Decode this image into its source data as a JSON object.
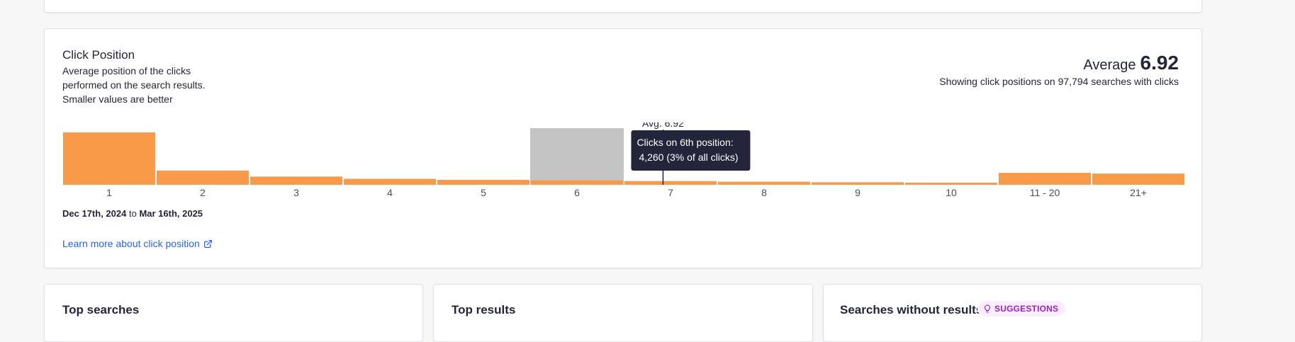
{
  "click_position": {
    "title": "Click Position",
    "description_lines": [
      "Average position of the clicks",
      "performed on the search results.",
      "Smaller values are better"
    ],
    "average_label": "Average",
    "average_value": "6.92",
    "subtitle": "Showing click positions on 97,794 searches with clicks",
    "date_from": "Dec 17th, 2024",
    "date_to_word": "to",
    "date_to": "Mar 16th, 2025",
    "learn_more": "Learn more about click position"
  },
  "chart_data": {
    "type": "bar",
    "categories": [
      "1",
      "2",
      "3",
      "4",
      "5",
      "6",
      "7",
      "8",
      "9",
      "10",
      "11 - 20",
      "21+"
    ],
    "values": [
      0.35,
      0.095,
      0.055,
      0.04,
      0.033,
      0.03,
      0.025,
      0.021,
      0.017,
      0.014,
      0.08,
      0.075
    ],
    "highlight_index": 5,
    "avg_marker": {
      "value": 6.92,
      "label": "Avg. 6.92"
    },
    "tooltip": {
      "line1": "Clicks on 6th position:",
      "line2": "4,260 (3% of all clicks)"
    },
    "colors": {
      "bar": "#f89a47",
      "highlight_bg": "#c4c4c4",
      "tooltip_bg": "#23263b",
      "marker": "#23263b"
    }
  },
  "top_searches": {
    "title": "Top searches"
  },
  "top_results": {
    "title": "Top results"
  },
  "searches_without_results": {
    "title": "Searches without results",
    "badge": "SUGGESTIONS"
  }
}
